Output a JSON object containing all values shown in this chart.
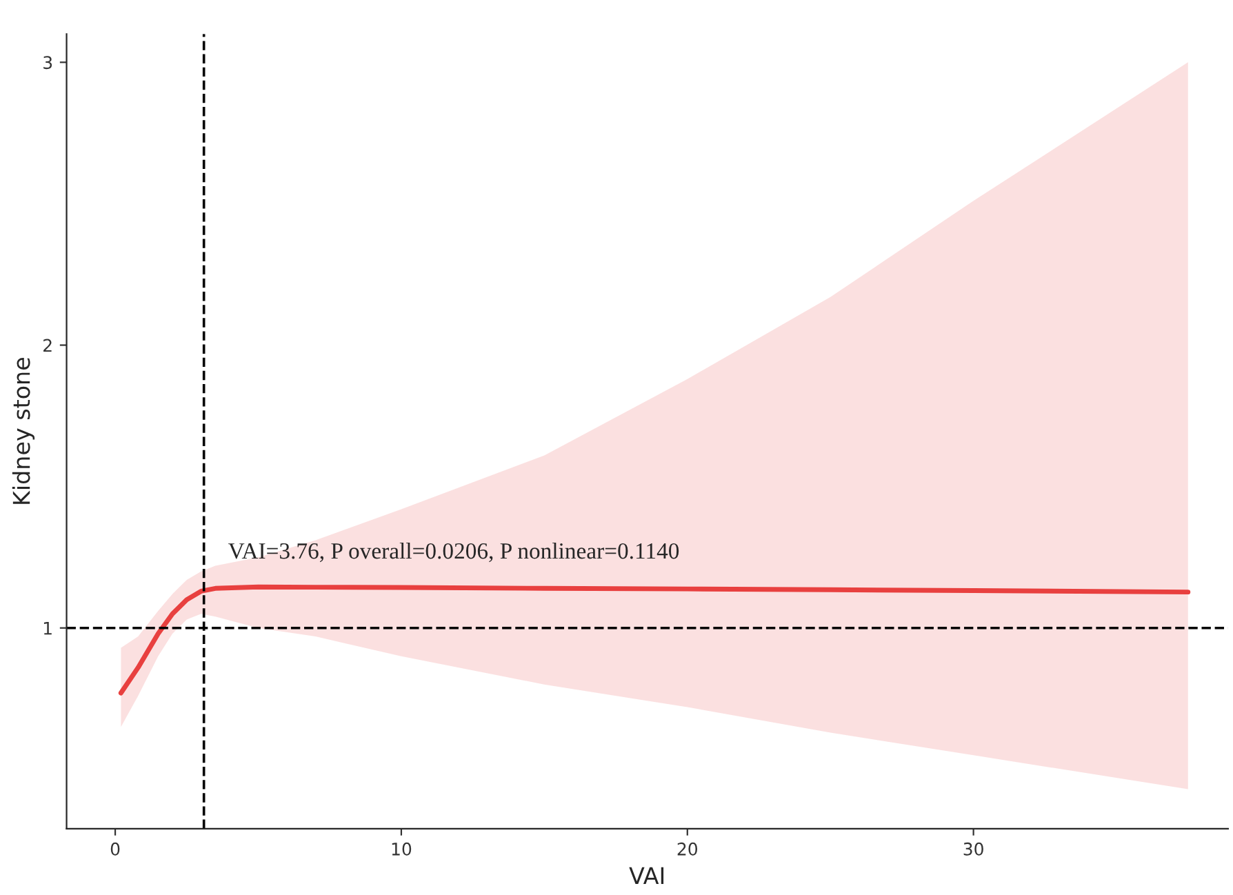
{
  "chart_data": {
    "type": "line",
    "xlabel": "VAI",
    "ylabel": "Kidney stone",
    "x": [
      0.2,
      0.8,
      1.5,
      2,
      2.5,
      3,
      3.5,
      5,
      7,
      10,
      15,
      20,
      25,
      30,
      37.5
    ],
    "series": [
      {
        "color": "#e8403f",
        "values": [
          0.77,
          0.86,
          0.98,
          1.05,
          1.1,
          1.13,
          1.14,
          1.145,
          1.144,
          1.143,
          1.14,
          1.138,
          1.135,
          1.132,
          1.127
        ],
        "lower": [
          0.65,
          0.76,
          0.9,
          0.98,
          1.03,
          1.05,
          1.04,
          1.0,
          0.97,
          0.9,
          0.8,
          0.72,
          0.63,
          0.55,
          0.43
        ],
        "upper": [
          0.93,
          0.97,
          1.06,
          1.12,
          1.17,
          1.2,
          1.22,
          1.25,
          1.31,
          1.42,
          1.61,
          1.88,
          2.17,
          2.51,
          3.0
        ]
      }
    ],
    "xlim": [
      -1.7,
      38.9
    ],
    "ylim": [
      0.29,
      3.1
    ],
    "xticks": [
      0,
      10,
      20,
      30
    ],
    "yticks": [
      1,
      2,
      3
    ],
    "ref_lines": [
      {
        "axis": "x",
        "value": 3.1,
        "color": "#000000",
        "line_style": "dashed"
      },
      {
        "axis": "y",
        "value": 1,
        "color": "#000000",
        "line_style": "dashed"
      }
    ],
    "annotations": [
      "VAI=3.76, P overall=0.0206, P nonlinear=0.1140"
    ],
    "grid": false,
    "legend": false,
    "marker": "none",
    "line_style": "solid"
  }
}
